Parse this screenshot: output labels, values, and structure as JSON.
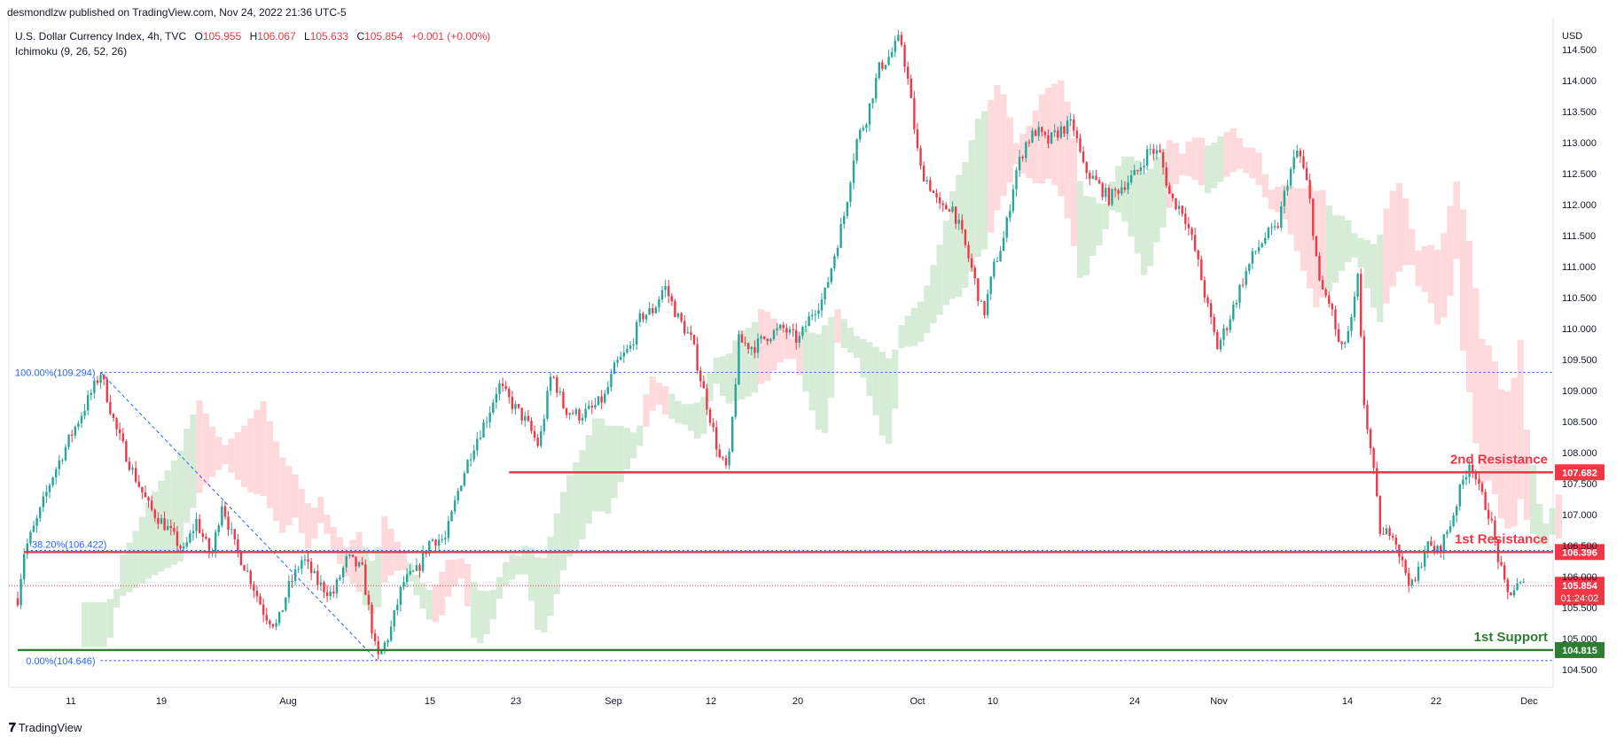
{
  "publisher": "desmondlzw published on TradingView.com, Nov 24, 2022 21:36 UTC-5",
  "symbol": {
    "name": "U.S. Dollar Currency Index, 4h, TVC",
    "open_label": "O",
    "open": "105.955",
    "high_label": "H",
    "high": "106.067",
    "low_label": "L",
    "low": "105.633",
    "close_label": "C",
    "close": "105.854",
    "change": "+0.001 (+0.00%)"
  },
  "indicator": "Ichimoku (9, 26, 52, 26)",
  "footer": {
    "brand": "TradingView"
  },
  "colors": {
    "up": "#26a69a",
    "down": "#f23645",
    "resistance": "#f23645",
    "support": "#2e7d32",
    "fib": "#2962ff",
    "cloud_green": "#c8e6c9",
    "cloud_red": "#ffcdd2"
  },
  "chart_data": {
    "type": "candlestick",
    "currency": "USD",
    "ylim": [
      104.3,
      114.9
    ],
    "y_ticks": [
      "104.500",
      "105.000",
      "105.500",
      "106.000",
      "106.500",
      "107.000",
      "107.500",
      "108.000",
      "108.500",
      "109.000",
      "109.500",
      "110.000",
      "110.500",
      "111.000",
      "111.500",
      "112.000",
      "112.500",
      "113.000",
      "113.500",
      "114.000",
      "114.500"
    ],
    "x_ticks": [
      "11",
      "19",
      "Aug",
      "15",
      "23",
      "Sep",
      "12",
      "20",
      "Oct",
      "10",
      "24",
      "Nov",
      "14",
      "22",
      "Dec"
    ],
    "levels": [
      {
        "name": "2nd Resistance",
        "price": 107.682,
        "price_label": "107.682",
        "kind": "resistance"
      },
      {
        "name": "1st Resistance",
        "price": 106.396,
        "price_label": "106.396",
        "kind": "resistance"
      },
      {
        "name": "1st Support",
        "price": 104.815,
        "price_label": "104.815",
        "kind": "support"
      }
    ],
    "fib": [
      {
        "label": "100.00%(109.294)",
        "price": 109.294
      },
      {
        "label": "38.20%(106.422)",
        "price": 106.422
      },
      {
        "label": "0.00%(104.646)",
        "price": 104.646
      }
    ],
    "last_price": {
      "price": 105.854,
      "label": "105.854",
      "countdown": "01:24:02"
    },
    "path": [
      [
        0,
        104.8
      ],
      [
        6,
        105.4
      ],
      [
        14,
        106.4
      ],
      [
        26,
        106.9
      ],
      [
        40,
        107.6
      ],
      [
        56,
        108.2
      ],
      [
        70,
        108.7
      ],
      [
        86,
        109.29
      ],
      [
        100,
        108.4
      ],
      [
        116,
        107.7
      ],
      [
        132,
        107.1
      ],
      [
        148,
        106.8
      ],
      [
        164,
        106.4
      ],
      [
        176,
        106.9
      ],
      [
        190,
        106.3
      ],
      [
        200,
        107.2
      ],
      [
        212,
        106.5
      ],
      [
        226,
        106.0
      ],
      [
        240,
        105.4
      ],
      [
        252,
        105.2
      ],
      [
        262,
        105.8
      ],
      [
        276,
        106.3
      ],
      [
        290,
        105.9
      ],
      [
        304,
        105.7
      ],
      [
        318,
        106.3
      ],
      [
        332,
        106.1
      ],
      [
        346,
        104.65
      ],
      [
        358,
        105.1
      ],
      [
        370,
        105.9
      ],
      [
        384,
        106.1
      ],
      [
        396,
        106.6
      ],
      [
        410,
        106.6
      ],
      [
        424,
        107.5
      ],
      [
        436,
        108.1
      ],
      [
        450,
        108.6
      ],
      [
        460,
        109.1
      ],
      [
        472,
        108.8
      ],
      [
        486,
        108.5
      ],
      [
        498,
        108.1
      ],
      [
        510,
        109.3
      ],
      [
        522,
        108.7
      ],
      [
        536,
        108.6
      ],
      [
        548,
        108.7
      ],
      [
        560,
        108.9
      ],
      [
        570,
        109.4
      ],
      [
        584,
        109.7
      ],
      [
        594,
        110.2
      ],
      [
        606,
        110.3
      ],
      [
        616,
        110.7
      ],
      [
        628,
        110.2
      ],
      [
        642,
        109.8
      ],
      [
        650,
        109.2
      ],
      [
        660,
        108.5
      ],
      [
        668,
        107.9
      ],
      [
        676,
        107.7
      ],
      [
        686,
        109.8
      ],
      [
        700,
        109.7
      ],
      [
        714,
        109.9
      ],
      [
        728,
        110.0
      ],
      [
        742,
        109.8
      ],
      [
        756,
        110.3
      ],
      [
        766,
        110.5
      ],
      [
        776,
        111.2
      ],
      [
        786,
        111.9
      ],
      [
        796,
        113.0
      ],
      [
        806,
        113.4
      ],
      [
        818,
        114.2
      ],
      [
        828,
        114.4
      ],
      [
        838,
        114.7
      ],
      [
        846,
        113.9
      ],
      [
        856,
        112.6
      ],
      [
        866,
        112.3
      ],
      [
        876,
        111.9
      ],
      [
        886,
        112.0
      ],
      [
        896,
        111.5
      ],
      [
        906,
        110.9
      ],
      [
        916,
        110.2
      ],
      [
        926,
        111.0
      ],
      [
        936,
        111.5
      ],
      [
        946,
        112.5
      ],
      [
        956,
        113.0
      ],
      [
        966,
        113.2
      ],
      [
        976,
        113.0
      ],
      [
        988,
        113.2
      ],
      [
        1000,
        113.3
      ],
      [
        1010,
        112.6
      ],
      [
        1020,
        112.4
      ],
      [
        1034,
        112.1
      ],
      [
        1046,
        112.3
      ],
      [
        1060,
        112.5
      ],
      [
        1072,
        112.9
      ],
      [
        1082,
        112.8
      ],
      [
        1092,
        112.1
      ],
      [
        1104,
        111.9
      ],
      [
        1116,
        111.2
      ],
      [
        1126,
        110.4
      ],
      [
        1136,
        109.7
      ],
      [
        1146,
        110.1
      ],
      [
        1158,
        110.7
      ],
      [
        1170,
        111.2
      ],
      [
        1182,
        111.5
      ],
      [
        1192,
        111.6
      ],
      [
        1202,
        112.4
      ],
      [
        1212,
        112.9
      ],
      [
        1222,
        112.2
      ],
      [
        1232,
        110.7
      ],
      [
        1242,
        110.4
      ],
      [
        1252,
        109.6
      ],
      [
        1262,
        110.1
      ],
      [
        1268,
        110.8
      ],
      [
        1274,
        108.8
      ],
      [
        1282,
        107.8
      ],
      [
        1290,
        106.6
      ],
      [
        1300,
        106.8
      ],
      [
        1310,
        106.2
      ],
      [
        1320,
        105.8
      ],
      [
        1332,
        106.5
      ],
      [
        1344,
        106.4
      ],
      [
        1356,
        106.9
      ],
      [
        1366,
        107.5
      ],
      [
        1374,
        107.9
      ],
      [
        1382,
        107.4
      ],
      [
        1392,
        107.0
      ],
      [
        1400,
        106.3
      ],
      [
        1408,
        105.7
      ],
      [
        1418,
        105.85
      ]
    ]
  }
}
